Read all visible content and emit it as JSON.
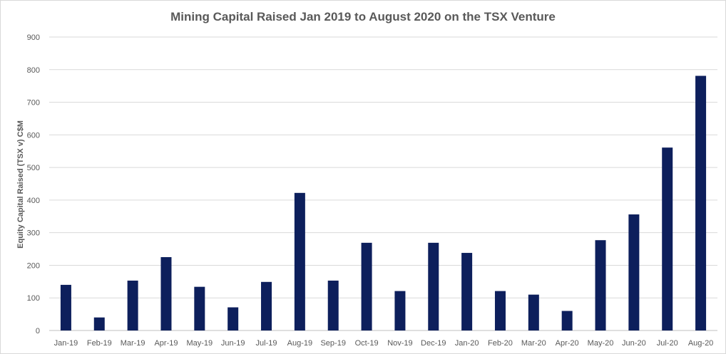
{
  "chart_data": {
    "type": "bar",
    "title": "Mining Capital Raised Jan 2019 to August 2020 on the TSX Venture",
    "ylabel": "Equity Capital Raised (TSX v) C$M",
    "xlabel": "",
    "ylim": [
      0,
      900
    ],
    "yticks": [
      0,
      100,
      200,
      300,
      400,
      500,
      600,
      700,
      800,
      900
    ],
    "grid": true,
    "legend": "none",
    "bar_color": "#0d1f5c",
    "categories": [
      "Jan-19",
      "Feb-19",
      "Mar-19",
      "Apr-19",
      "May-19",
      "Jun-19",
      "Jul-19",
      "Aug-19",
      "Sep-19",
      "Oct-19",
      "Nov-19",
      "Dec-19",
      "Jan-20",
      "Feb-20",
      "Mar-20",
      "Apr-20",
      "May-20",
      "Jun-20",
      "Jul-20",
      "Aug-20"
    ],
    "values": [
      140,
      40,
      153,
      225,
      134,
      71,
      149,
      422,
      153,
      269,
      121,
      269,
      238,
      121,
      110,
      60,
      277,
      356,
      561,
      781
    ]
  }
}
